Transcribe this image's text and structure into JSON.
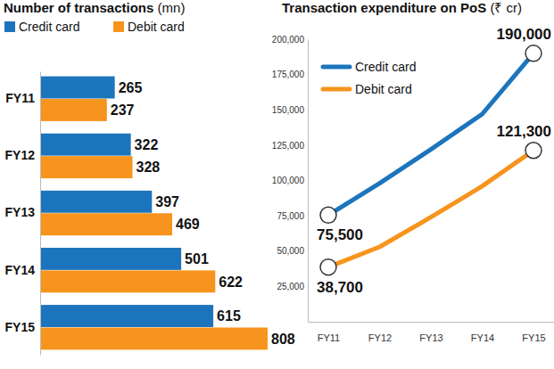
{
  "chart_data": [
    {
      "type": "bar",
      "orientation": "horizontal",
      "title": "Number of transactions (mn)",
      "categories": [
        "FY11",
        "FY12",
        "FY13",
        "FY14",
        "FY15"
      ],
      "series": [
        {
          "name": "Credit card",
          "color": "#1c75bc",
          "values": [
            265,
            322,
            397,
            501,
            615
          ]
        },
        {
          "name": "Debit card",
          "color": "#f7941d",
          "values": [
            237,
            328,
            469,
            622,
            808
          ]
        }
      ],
      "xlim": [
        0,
        808
      ],
      "data_labels": true,
      "tick_labels": "y",
      "legend": "top-left"
    },
    {
      "type": "line",
      "title": "Transaction expenditure on PoS (₹ cr)",
      "categories": [
        "FY11",
        "FY12",
        "FY13",
        "FY14",
        "FY15"
      ],
      "series": [
        {
          "name": "Credit card",
          "color": "#1c75bc",
          "values": [
            75500,
            98000,
            122000,
            147000,
            190000
          ],
          "value_labels": [
            "75,500",
            null,
            null,
            null,
            "190,000"
          ]
        },
        {
          "name": "Debit card",
          "color": "#f7941d",
          "values": [
            38700,
            53000,
            74000,
            96000,
            121300
          ],
          "value_labels": [
            "38,700",
            null,
            null,
            null,
            "121,300"
          ]
        }
      ],
      "ylim": [
        0,
        200000
      ],
      "yticks": [
        {
          "value": 25000,
          "label": "25,000"
        },
        {
          "value": 50000,
          "label": "50,000"
        },
        {
          "value": 75000,
          "label": "75,000"
        },
        {
          "value": 100000,
          "label": "100,000"
        },
        {
          "value": 125000,
          "label": "125,000"
        },
        {
          "value": 150000,
          "label": "150,000"
        },
        {
          "value": 175000,
          "label": "175,000"
        },
        {
          "value": 200000,
          "label": "200,000"
        }
      ],
      "data_labels": true,
      "legend": "top-left"
    }
  ]
}
